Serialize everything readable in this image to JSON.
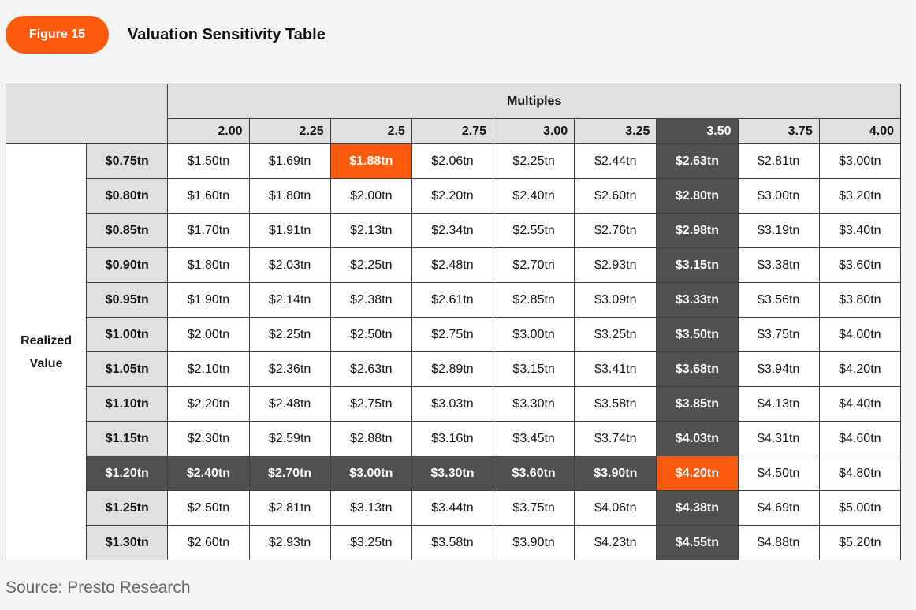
{
  "header": {
    "badge": "Figure 15",
    "title": "Valuation Sensitivity Table"
  },
  "table": {
    "multiples_label": "Multiples",
    "realized_label_line1": "Realized",
    "realized_label_line2": "Value",
    "columns": [
      "2.00",
      "2.25",
      "2.5",
      "2.75",
      "3.00",
      "3.25",
      "3.50",
      "3.75",
      "4.00"
    ],
    "rows": [
      {
        "label": "$0.75tn",
        "cells": [
          "$1.50tn",
          "$1.69tn",
          "$1.88tn",
          "$2.06tn",
          "$2.25tn",
          "$2.44tn",
          "$2.63tn",
          "$2.81tn",
          "$3.00tn"
        ]
      },
      {
        "label": "$0.80tn",
        "cells": [
          "$1.60tn",
          "$1.80tn",
          "$2.00tn",
          "$2.20tn",
          "$2.40tn",
          "$2.60tn",
          "$2.80tn",
          "$3.00tn",
          "$3.20tn"
        ]
      },
      {
        "label": "$0.85tn",
        "cells": [
          "$1.70tn",
          "$1.91tn",
          "$2.13tn",
          "$2.34tn",
          "$2.55tn",
          "$2.76tn",
          "$2.98tn",
          "$3.19tn",
          "$3.40tn"
        ]
      },
      {
        "label": "$0.90tn",
        "cells": [
          "$1.80tn",
          "$2.03tn",
          "$2.25tn",
          "$2.48tn",
          "$2.70tn",
          "$2.93tn",
          "$3.15tn",
          "$3.38tn",
          "$3.60tn"
        ]
      },
      {
        "label": "$0.95tn",
        "cells": [
          "$1.90tn",
          "$2.14tn",
          "$2.38tn",
          "$2.61tn",
          "$2.85tn",
          "$3.09tn",
          "$3.33tn",
          "$3.56tn",
          "$3.80tn"
        ]
      },
      {
        "label": "$1.00tn",
        "cells": [
          "$2.00tn",
          "$2.25tn",
          "$2.50tn",
          "$2.75tn",
          "$3.00tn",
          "$3.25tn",
          "$3.50tn",
          "$3.75tn",
          "$4.00tn"
        ]
      },
      {
        "label": "$1.05tn",
        "cells": [
          "$2.10tn",
          "$2.36tn",
          "$2.63tn",
          "$2.89tn",
          "$3.15tn",
          "$3.41tn",
          "$3.68tn",
          "$3.94tn",
          "$4.20tn"
        ]
      },
      {
        "label": "$1.10tn",
        "cells": [
          "$2.20tn",
          "$2.48tn",
          "$2.75tn",
          "$3.03tn",
          "$3.30tn",
          "$3.58tn",
          "$3.85tn",
          "$4.13tn",
          "$4.40tn"
        ]
      },
      {
        "label": "$1.15tn",
        "cells": [
          "$2.30tn",
          "$2.59tn",
          "$2.88tn",
          "$3.16tn",
          "$3.45tn",
          "$3.74tn",
          "$4.03tn",
          "$4.31tn",
          "$4.60tn"
        ]
      },
      {
        "label": "$1.20tn",
        "cells": [
          "$2.40tn",
          "$2.70tn",
          "$3.00tn",
          "$3.30tn",
          "$3.60tn",
          "$3.90tn",
          "$4.20tn",
          "$4.50tn",
          "$4.80tn"
        ]
      },
      {
        "label": "$1.25tn",
        "cells": [
          "$2.50tn",
          "$2.81tn",
          "$3.13tn",
          "$3.44tn",
          "$3.75tn",
          "$4.06tn",
          "$4.38tn",
          "$4.69tn",
          "$5.00tn"
        ]
      },
      {
        "label": "$1.30tn",
        "cells": [
          "$2.60tn",
          "$2.93tn",
          "$3.25tn",
          "$3.58tn",
          "$3.90tn",
          "$4.23tn",
          "$4.55tn",
          "$4.88tn",
          "$5.20tn"
        ]
      }
    ],
    "highlight": {
      "dark_column": 6,
      "dark_row": 9,
      "orange_cells": [
        [
          0,
          2
        ],
        [
          9,
          6
        ]
      ]
    },
    "colors": {
      "dark": "#505050",
      "orange": "#fc5a0d",
      "header_gray": "#e0e0e0"
    }
  },
  "source": "Source: Presto Research"
}
